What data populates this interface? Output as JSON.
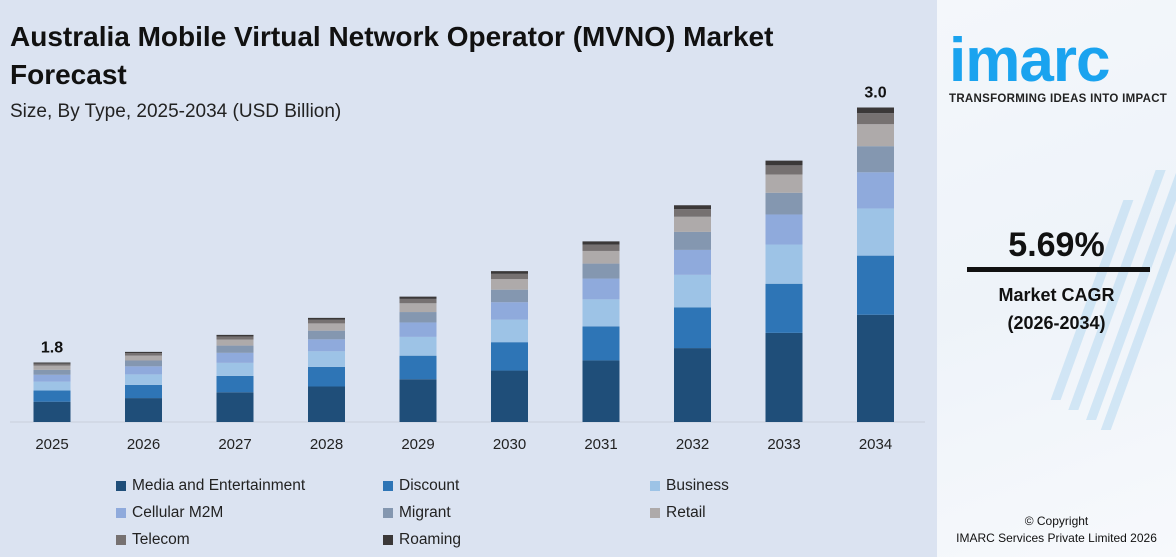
{
  "header": {
    "title": "Australia Mobile Virtual Network Operator (MVNO) Market Forecast",
    "subtitle": "Size, By Type, 2025-2034 (USD Billion)"
  },
  "chart_data": {
    "type": "bar",
    "stacked": true,
    "categories": [
      "2025",
      "2026",
      "2027",
      "2028",
      "2029",
      "2030",
      "2031",
      "2032",
      "2033",
      "2034"
    ],
    "totals": [
      1.8,
      1.85,
      1.93,
      2.01,
      2.11,
      2.23,
      2.37,
      2.54,
      2.75,
      3.0
    ],
    "data_labels": {
      "2025": "1.8",
      "2034": "3.0"
    },
    "segment_shares_pct": [
      {
        "name": "Media and Entertainment",
        "value": 34.1,
        "color": "#1f4e79"
      },
      {
        "name": "Discount",
        "value": 18.8,
        "color": "#2e75b6"
      },
      {
        "name": "Business",
        "value": 15.0,
        "color": "#9dc3e6"
      },
      {
        "name": "Cellular M2M",
        "value": 11.5,
        "color": "#8faadc"
      },
      {
        "name": "Migrant",
        "value": 8.3,
        "color": "#8497b0"
      },
      {
        "name": "Retail",
        "value": 7.0,
        "color": "#aeaaaa"
      },
      {
        "name": "Telecom",
        "value": 3.5,
        "color": "#767171"
      },
      {
        "name": "Roaming",
        "value": 1.8,
        "color": "#3b3838"
      }
    ],
    "ylim": [
      1.52,
      3.0
    ],
    "grid": false,
    "legend": "bottom"
  },
  "brand": {
    "logo": "imarc",
    "tagline": "TRANSFORMING IDEAS INTO IMPACT"
  },
  "cagr": {
    "value": "5.69%",
    "label": "Market CAGR",
    "period": "(2026-2034)"
  },
  "footer": {
    "copyright": "© Copyright",
    "company": "IMARC Services Private Limited 2026"
  }
}
